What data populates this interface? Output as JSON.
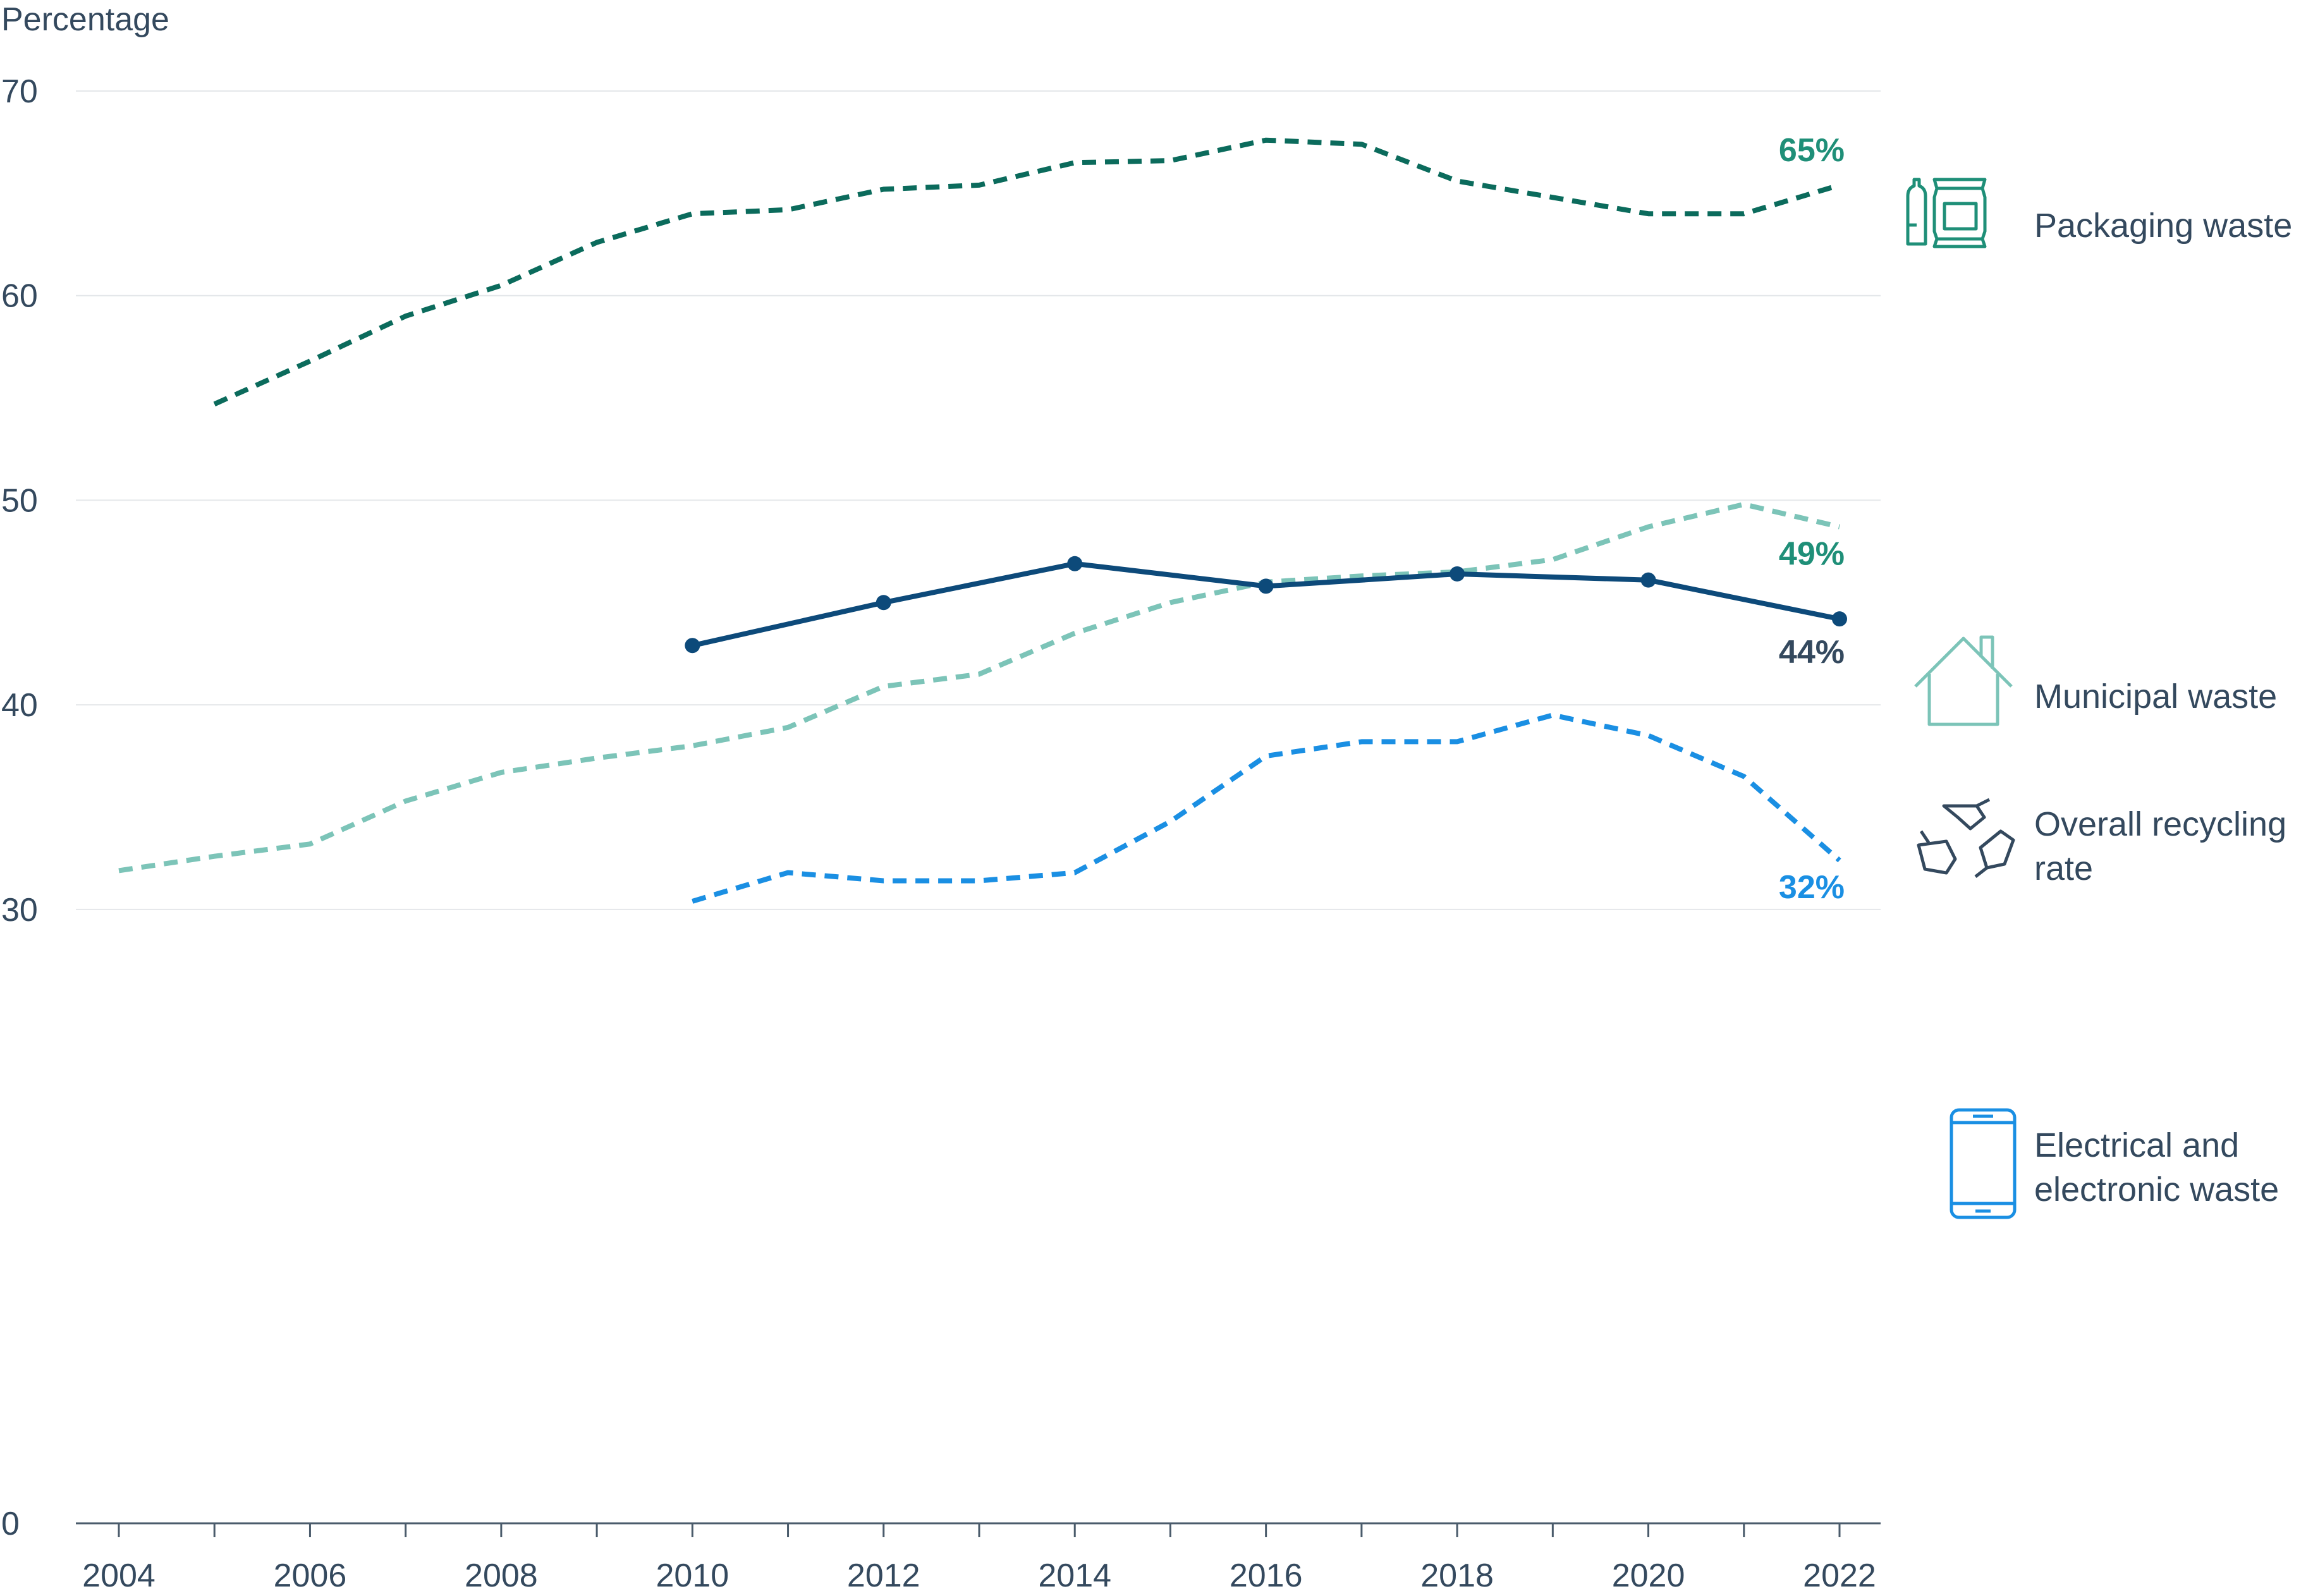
{
  "chart_data": {
    "type": "line",
    "ylabel": "Percentage",
    "xlim": [
      2004,
      2022
    ],
    "ylim": [
      0,
      70
    ],
    "x_ticks": [
      "2004",
      "2006",
      "2008",
      "2010",
      "2012",
      "2014",
      "2016",
      "2018",
      "2020",
      "2022"
    ],
    "y_ticks": [
      "0",
      "30",
      "40",
      "50",
      "60",
      "70"
    ],
    "grid": true,
    "series": [
      {
        "name": "Packaging waste",
        "color": "#0b6b5c",
        "dashed": true,
        "markers": false,
        "end_label": "65%",
        "end_label_color": "#1f8f78",
        "icon": "packaging-icon",
        "x": [
          2005,
          2006,
          2007,
          2008,
          2009,
          2010,
          2011,
          2012,
          2013,
          2014,
          2015,
          2016,
          2017,
          2018,
          2019,
          2020,
          2021,
          2022
        ],
        "values": [
          54.7,
          56.8,
          59.0,
          60.5,
          62.6,
          64.0,
          64.2,
          65.2,
          65.4,
          66.5,
          66.6,
          67.6,
          67.4,
          65.6,
          64.8,
          64.0,
          64.0,
          65.4
        ]
      },
      {
        "name": "Municipal waste",
        "color": "#7cc4b8",
        "dashed": true,
        "markers": false,
        "end_label": "49%",
        "end_label_color": "#1f8f78",
        "icon": "house-icon",
        "x": [
          2004,
          2005,
          2006,
          2007,
          2008,
          2009,
          2010,
          2011,
          2012,
          2013,
          2014,
          2015,
          2016,
          2017,
          2018,
          2019,
          2020,
          2021,
          2022
        ],
        "values": [
          31.9,
          32.6,
          33.2,
          35.3,
          36.7,
          37.4,
          38.0,
          38.9,
          40.9,
          41.5,
          43.5,
          45.0,
          46.0,
          46.3,
          46.5,
          47.1,
          48.7,
          49.8,
          48.7
        ]
      },
      {
        "name": "Overall recycling rate",
        "color": "#0d4a7a",
        "dashed": false,
        "markers": true,
        "end_label": "44%",
        "end_label_color": "#34495e",
        "icon": "recycle-icon",
        "x": [
          2010,
          2012,
          2014,
          2016,
          2018,
          2020,
          2022
        ],
        "values": [
          42.9,
          45.0,
          46.9,
          45.8,
          46.4,
          46.1,
          44.2
        ]
      },
      {
        "name": "Electrical and electronic waste",
        "color": "#1a8fe3",
        "dashed": true,
        "markers": false,
        "end_label": "32%",
        "end_label_color": "#1a8fe3",
        "icon": "smartphone-icon",
        "x": [
          2010,
          2011,
          2012,
          2013,
          2014,
          2015,
          2016,
          2017,
          2018,
          2019,
          2020,
          2021,
          2022
        ],
        "values": [
          30.4,
          31.8,
          31.4,
          31.4,
          31.8,
          34.3,
          37.5,
          38.2,
          38.2,
          39.5,
          38.5,
          36.5,
          32.4
        ]
      }
    ],
    "legend": [
      {
        "name": "Packaging waste",
        "lines": [
          "Packaging waste"
        ],
        "icon": "packaging-icon",
        "color": "#0b6b5c"
      },
      {
        "name": "Municipal waste",
        "lines": [
          "Municipal waste"
        ],
        "icon": "house-icon",
        "color": "#7cc4b8"
      },
      {
        "name": "Overall recycling rate",
        "lines": [
          "Overall recycling",
          "rate"
        ],
        "icon": "recycle-icon",
        "color": "#34495e"
      },
      {
        "name": "Electrical and electronic waste",
        "lines": [
          "Electrical and",
          "electronic waste"
        ],
        "icon": "smartphone-icon",
        "color": "#1a8fe3"
      }
    ]
  }
}
